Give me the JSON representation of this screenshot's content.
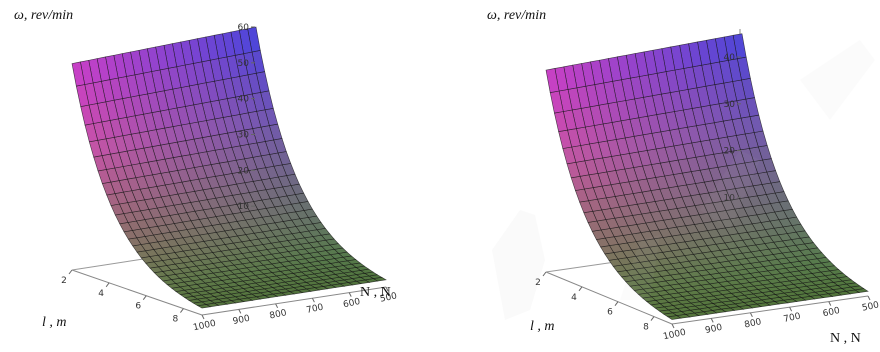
{
  "chart_data": [
    {
      "type": "surface",
      "zlabel": "ω, rev/min",
      "xlabel": "l , m",
      "ylabel": "N , N",
      "x_ticks": [
        "2",
        "4",
        "6",
        "8"
      ],
      "y_ticks": [
        "1000",
        "900",
        "800",
        "700",
        "600",
        "500"
      ],
      "z_ticks": [
        "10",
        "20",
        "30",
        "40",
        "50",
        "60"
      ],
      "x_range": [
        2,
        9
      ],
      "y_range": [
        500,
        1000
      ],
      "z_range": [
        0,
        60
      ],
      "corner_values": {
        "l_min_N_min": 60,
        "l_min_N_max": 60,
        "l_max_N_max": 2,
        "l_max_N_min": 2
      },
      "grid": true
    },
    {
      "type": "surface",
      "zlabel": "ω, rev/min",
      "xlabel": "l , m",
      "ylabel": "N , N",
      "x_ticks": [
        "2",
        "4",
        "6",
        "8"
      ],
      "y_ticks": [
        "1000",
        "900",
        "800",
        "700",
        "600",
        "500"
      ],
      "z_ticks": [
        "10",
        "20",
        "30",
        "40"
      ],
      "x_range": [
        2,
        9
      ],
      "y_range": [
        500,
        1000
      ],
      "z_range": [
        0,
        46
      ],
      "corner_values": {
        "l_min_N_min": 45,
        "l_min_N_max": 45,
        "l_max_N_max": 1,
        "l_max_N_min": 1
      },
      "grid": true
    }
  ],
  "colors": {
    "magenta": "#d040d8",
    "blue": "#4848e8",
    "red": "#e85858",
    "green": "#6a9a48",
    "gridline": "#141414",
    "watermark": "#c0c0c0"
  }
}
